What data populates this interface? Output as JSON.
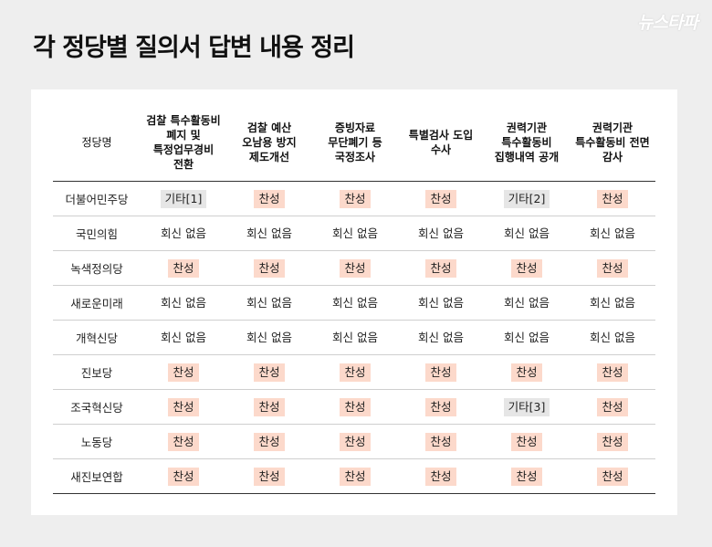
{
  "title": "각 정당별 질의서 답변 내용 정리",
  "logo": "뉴스타파",
  "colors": {
    "agree_bg": "#fcd9cb",
    "other_bg": "#e6e6e6",
    "background": "#eeeeee"
  },
  "table": {
    "headers": [
      "정당명",
      "검찰 특수활동비\n폐지 및\n특정업무경비\n전환",
      "검찰 예산\n오남용 방지\n제도개선",
      "증빙자료\n무단폐기 등\n국정조사",
      "특별검사 도입\n수사",
      "권력기관\n특수활동비\n집행내역 공개",
      "권력기관\n특수활동비 전면\n감사"
    ],
    "rows": [
      {
        "party": "더불어민주당",
        "cells": [
          {
            "text": "기타[1]",
            "kind": "other"
          },
          {
            "text": "찬성",
            "kind": "agree"
          },
          {
            "text": "찬성",
            "kind": "agree"
          },
          {
            "text": "찬성",
            "kind": "agree"
          },
          {
            "text": "기타[2]",
            "kind": "other"
          },
          {
            "text": "찬성",
            "kind": "agree"
          }
        ]
      },
      {
        "party": "국민의힘",
        "cells": [
          {
            "text": "회신 없음",
            "kind": "none"
          },
          {
            "text": "회신 없음",
            "kind": "none"
          },
          {
            "text": "회신 없음",
            "kind": "none"
          },
          {
            "text": "회신 없음",
            "kind": "none"
          },
          {
            "text": "회신 없음",
            "kind": "none"
          },
          {
            "text": "회신 없음",
            "kind": "none"
          }
        ]
      },
      {
        "party": "녹색정의당",
        "cells": [
          {
            "text": "찬성",
            "kind": "agree"
          },
          {
            "text": "찬성",
            "kind": "agree"
          },
          {
            "text": "찬성",
            "kind": "agree"
          },
          {
            "text": "찬성",
            "kind": "agree"
          },
          {
            "text": "찬성",
            "kind": "agree"
          },
          {
            "text": "찬성",
            "kind": "agree"
          }
        ]
      },
      {
        "party": "새로운미래",
        "cells": [
          {
            "text": "회신 없음",
            "kind": "none"
          },
          {
            "text": "회신 없음",
            "kind": "none"
          },
          {
            "text": "회신 없음",
            "kind": "none"
          },
          {
            "text": "회신 없음",
            "kind": "none"
          },
          {
            "text": "회신 없음",
            "kind": "none"
          },
          {
            "text": "회신 없음",
            "kind": "none"
          }
        ]
      },
      {
        "party": "개혁신당",
        "cells": [
          {
            "text": "회신 없음",
            "kind": "none"
          },
          {
            "text": "회신 없음",
            "kind": "none"
          },
          {
            "text": "회신 없음",
            "kind": "none"
          },
          {
            "text": "회신 없음",
            "kind": "none"
          },
          {
            "text": "회신 없음",
            "kind": "none"
          },
          {
            "text": "회신 없음",
            "kind": "none"
          }
        ]
      },
      {
        "party": "진보당",
        "cells": [
          {
            "text": "찬성",
            "kind": "agree"
          },
          {
            "text": "찬성",
            "kind": "agree"
          },
          {
            "text": "찬성",
            "kind": "agree"
          },
          {
            "text": "찬성",
            "kind": "agree"
          },
          {
            "text": "찬성",
            "kind": "agree"
          },
          {
            "text": "찬성",
            "kind": "agree"
          }
        ]
      },
      {
        "party": "조국혁신당",
        "cells": [
          {
            "text": "찬성",
            "kind": "agree"
          },
          {
            "text": "찬성",
            "kind": "agree"
          },
          {
            "text": "찬성",
            "kind": "agree"
          },
          {
            "text": "찬성",
            "kind": "agree"
          },
          {
            "text": "기타[3]",
            "kind": "other"
          },
          {
            "text": "찬성",
            "kind": "agree"
          }
        ]
      },
      {
        "party": "노동당",
        "cells": [
          {
            "text": "찬성",
            "kind": "agree"
          },
          {
            "text": "찬성",
            "kind": "agree"
          },
          {
            "text": "찬성",
            "kind": "agree"
          },
          {
            "text": "찬성",
            "kind": "agree"
          },
          {
            "text": "찬성",
            "kind": "agree"
          },
          {
            "text": "찬성",
            "kind": "agree"
          }
        ]
      },
      {
        "party": "새진보연합",
        "cells": [
          {
            "text": "찬성",
            "kind": "agree"
          },
          {
            "text": "찬성",
            "kind": "agree"
          },
          {
            "text": "찬성",
            "kind": "agree"
          },
          {
            "text": "찬성",
            "kind": "agree"
          },
          {
            "text": "찬성",
            "kind": "agree"
          },
          {
            "text": "찬성",
            "kind": "agree"
          }
        ]
      }
    ]
  }
}
